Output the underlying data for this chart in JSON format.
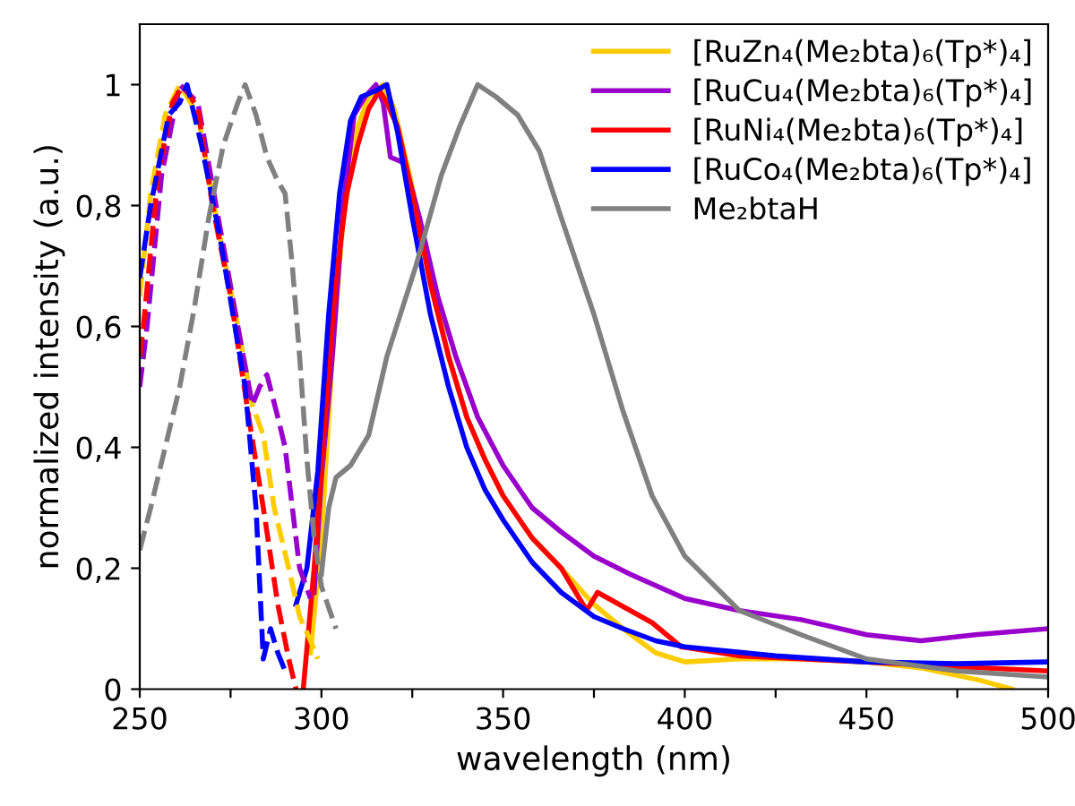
{
  "chart_data": {
    "type": "line",
    "xlabel": "wavelength (nm)",
    "ylabel": "normalized intensity (a.u.)",
    "xlim": [
      250,
      500
    ],
    "ylim": [
      0,
      1.1
    ],
    "xticks": [
      250,
      {
        "value": 275,
        "label": null
      },
      300,
      {
        "value": 325,
        "label": null
      },
      350,
      {
        "value": 375,
        "label": null
      },
      400,
      {
        "value": 425,
        "label": null
      },
      450,
      {
        "value": 475,
        "label": null
      },
      500
    ],
    "yticks": [
      0,
      {
        "value": 0.2,
        "label": "0,2"
      },
      {
        "value": 0.4,
        "label": "0,4"
      },
      {
        "value": 0.6,
        "label": "0,6"
      },
      {
        "value": 0.8,
        "label": "0,8"
      },
      1
    ],
    "grid": false,
    "legend": "top right",
    "marker": "none",
    "series": [
      {
        "name": "[RuZn₄(Me₂bta)₆(Tp*)₄]",
        "color": "#ffcc00",
        "line_style": "solid",
        "x": [
          297,
          300,
          303,
          306,
          310,
          313,
          317,
          320,
          325,
          330,
          335,
          340,
          345,
          350,
          358,
          366,
          375,
          383,
          392,
          400,
          415,
          432,
          450,
          465,
          481,
          490
        ],
        "values": [
          0.06,
          0.25,
          0.55,
          0.78,
          0.93,
          0.98,
          1.0,
          0.96,
          0.83,
          0.68,
          0.55,
          0.45,
          0.38,
          0.32,
          0.25,
          0.2,
          0.14,
          0.1,
          0.06,
          0.045,
          0.05,
          0.05,
          0.045,
          0.035,
          0.015,
          0.0
        ]
      },
      {
        "name": "[RuCu₄(Me₂bta)₆(Tp*)₄]",
        "color": "#9900cc",
        "line_style": "solid",
        "x": [
          298,
          300,
          303,
          306,
          309,
          312,
          315,
          317,
          319,
          323,
          327,
          332,
          337,
          343,
          350,
          358,
          366,
          375,
          385,
          400,
          415,
          432,
          450,
          465,
          480,
          500
        ],
        "values": [
          0.16,
          0.35,
          0.55,
          0.8,
          0.95,
          0.98,
          1.0,
          0.97,
          0.88,
          0.87,
          0.78,
          0.65,
          0.55,
          0.45,
          0.37,
          0.3,
          0.26,
          0.22,
          0.19,
          0.15,
          0.13,
          0.115,
          0.09,
          0.08,
          0.09,
          0.1
        ]
      },
      {
        "name": "[RuNi₄(Me₂bta)₆(Tp*)₄]",
        "color": "#ff0000",
        "line_style": "solid",
        "x": [
          295,
          298,
          301,
          304,
          307,
          310,
          313,
          316,
          318,
          321,
          325,
          330,
          335,
          340,
          345,
          350,
          358,
          366,
          373,
          376,
          385,
          391,
          399,
          415,
          432,
          450,
          465,
          500
        ],
        "values": [
          0.0,
          0.2,
          0.45,
          0.68,
          0.82,
          0.9,
          0.96,
          0.99,
          0.97,
          0.93,
          0.82,
          0.67,
          0.55,
          0.45,
          0.38,
          0.32,
          0.25,
          0.2,
          0.13,
          0.16,
          0.13,
          0.11,
          0.07,
          0.055,
          0.05,
          0.045,
          0.04,
          0.03
        ]
      },
      {
        "name": "[RuCo₄(Me₂bta)₆(Tp*)₄]",
        "color": "#0000ff",
        "line_style": "solid",
        "x": [
          293,
          296,
          299,
          302,
          305,
          308,
          311,
          315,
          318,
          321,
          325,
          330,
          335,
          340,
          345,
          350,
          358,
          366,
          375,
          383,
          392,
          400,
          425,
          450,
          475,
          500
        ],
        "values": [
          0.14,
          0.2,
          0.36,
          0.62,
          0.82,
          0.94,
          0.98,
          0.99,
          1.0,
          0.92,
          0.78,
          0.62,
          0.5,
          0.4,
          0.33,
          0.28,
          0.21,
          0.16,
          0.12,
          0.1,
          0.08,
          0.07,
          0.055,
          0.045,
          0.042,
          0.045
        ]
      },
      {
        "name": "Me₂btaH",
        "color": "#808080",
        "line_style": "solid",
        "x": [
          300,
          302,
          304,
          308,
          313,
          318,
          326,
          333,
          338,
          343,
          348,
          354,
          360,
          366,
          375,
          383,
          391,
          400,
          415,
          432,
          450,
          475,
          500
        ],
        "values": [
          0.19,
          0.3,
          0.35,
          0.37,
          0.42,
          0.55,
          0.7,
          0.85,
          0.93,
          1.0,
          0.98,
          0.95,
          0.89,
          0.78,
          0.62,
          0.46,
          0.32,
          0.22,
          0.13,
          0.09,
          0.05,
          0.03,
          0.02
        ]
      },
      {
        "color": "#ffcc00",
        "line_style": "dashed",
        "x": [
          250,
          253,
          257,
          261,
          266,
          272,
          277,
          281,
          284,
          287,
          291,
          294,
          297,
          299
        ],
        "values": [
          0.65,
          0.82,
          0.95,
          1.0,
          0.95,
          0.75,
          0.6,
          0.47,
          0.42,
          0.3,
          0.2,
          0.12,
          0.08,
          0.05
        ]
      },
      {
        "color": "#9900cc",
        "line_style": "dashed",
        "x": [
          250,
          252,
          256,
          260,
          261,
          266,
          271,
          277,
          281,
          283,
          285,
          288,
          290,
          294,
          297
        ],
        "values": [
          0.5,
          0.6,
          0.85,
          0.97,
          1.0,
          0.97,
          0.8,
          0.6,
          0.47,
          0.5,
          0.52,
          0.45,
          0.4,
          0.2,
          0.15
        ]
      },
      {
        "color": "#ff0000",
        "line_style": "dashed",
        "x": [
          250,
          251,
          255,
          259,
          262,
          266,
          270,
          275,
          280,
          284,
          288,
          291,
          293
        ],
        "values": [
          0.55,
          0.6,
          0.85,
          0.97,
          1.0,
          0.96,
          0.8,
          0.65,
          0.45,
          0.3,
          0.14,
          0.05,
          0.0
        ]
      },
      {
        "color": "#0000ff",
        "line_style": "dashed",
        "x": [
          250,
          253,
          258,
          261,
          263,
          267,
          272,
          279,
          282,
          284,
          286,
          288,
          290
        ],
        "values": [
          0.68,
          0.8,
          0.95,
          0.97,
          1.0,
          0.9,
          0.75,
          0.5,
          0.3,
          0.05,
          0.1,
          0.06,
          0.03
        ]
      },
      {
        "color": "#808080",
        "line_style": "dashed",
        "x": [
          250,
          253,
          257,
          261,
          265,
          269,
          273,
          277,
          279,
          282,
          285,
          288,
          290,
          292,
          294,
          296,
          298,
          300,
          304
        ],
        "values": [
          0.23,
          0.3,
          0.4,
          0.5,
          0.63,
          0.78,
          0.9,
          0.97,
          1.0,
          0.95,
          0.88,
          0.84,
          0.82,
          0.7,
          0.55,
          0.38,
          0.25,
          0.17,
          0.1
        ]
      }
    ]
  }
}
